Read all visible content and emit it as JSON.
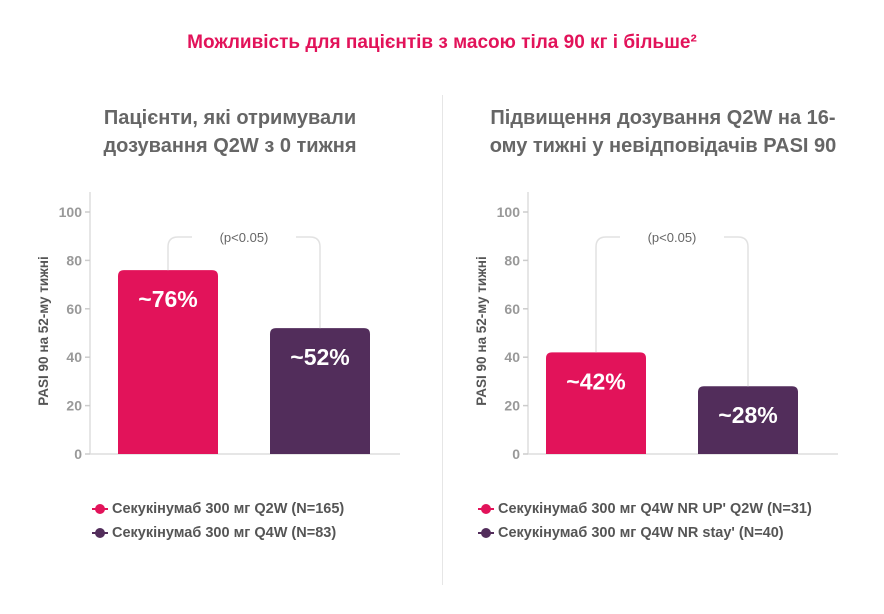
{
  "title": "Можливість для пацієнтів з масою тіла 90 кг і більше²",
  "colors": {
    "pink": "#e2135a",
    "purple": "#522d5b"
  },
  "chart_data": [
    {
      "type": "bar",
      "title": "Пацієнти, які отримували дозування Q2W з 0 тижня",
      "ylabel": "PASI 90 на 52-му тижні",
      "ylim": [
        0,
        100
      ],
      "yticks": [
        "0",
        "20",
        "40",
        "60",
        "80",
        "100"
      ],
      "grid": false,
      "categories": [
        "Секукінумаб 300 мг Q2W (N=165)",
        "Секукінумаб 300 мг Q4W (N=83)"
      ],
      "values": [
        76,
        52
      ],
      "data_labels": [
        "~76%",
        "~52%"
      ],
      "annotation": "(p<0.05)",
      "legend": "bottom"
    },
    {
      "type": "bar",
      "title": "Підвищення дозування Q2W на 16-ому тижні у невідповідачів PASI 90",
      "ylabel": "PASI 90 на 52-му тижні",
      "ylim": [
        0,
        100
      ],
      "yticks": [
        "0",
        "20",
        "40",
        "60",
        "80",
        "100"
      ],
      "grid": false,
      "categories": [
        "Секукінумаб 300 мг Q4W NR UP' Q2W (N=31)",
        "Секукінумаб 300 мг Q4W NR stay' (N=40)"
      ],
      "values": [
        42,
        28
      ],
      "data_labels": [
        "~42%",
        "~28%"
      ],
      "annotation": "(p<0.05)",
      "legend": "bottom"
    }
  ]
}
